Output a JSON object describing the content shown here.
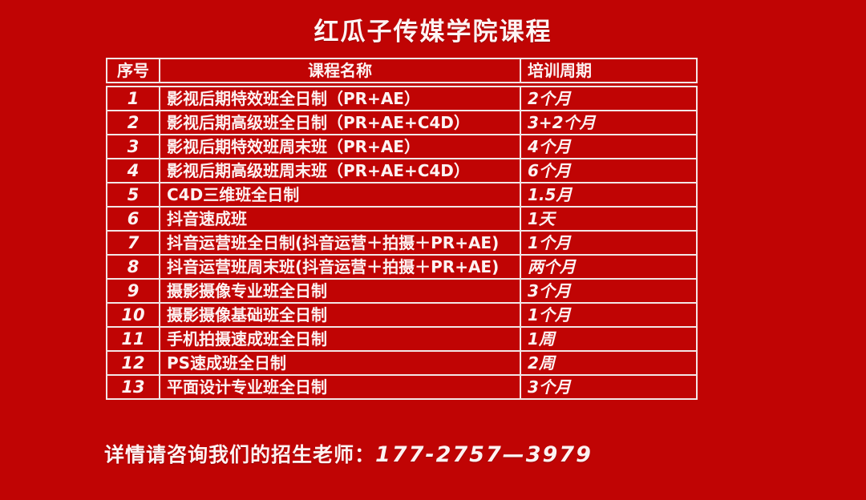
{
  "title": "红瓜子传媒学院课程",
  "colors": {
    "background": "#c00404",
    "grid_border": "#f3e6e6",
    "text": "#fdf2f2"
  },
  "table": {
    "headers": [
      "序号",
      "课程名称",
      "培训周期"
    ],
    "rows": [
      [
        "1",
        "影视后期特效班全日制（PR+AE）",
        "2个月"
      ],
      [
        "2",
        "影视后期高级班全日制（PR+AE+C4D）",
        "3+2个月"
      ],
      [
        "3",
        "影视后期特效班周末班（PR+AE）",
        "4个月"
      ],
      [
        "4",
        "影视后期高级班周末班（PR+AE+C4D）",
        "6个月"
      ],
      [
        "5",
        "C4D三维班全日制",
        "1.5月"
      ],
      [
        "6",
        "抖音速成班",
        "1天"
      ],
      [
        "7",
        "抖音运营班全日制(抖音运营＋拍摄＋PR+AE)",
        "1个月"
      ],
      [
        "8",
        "抖音运营班周末班(抖音运营＋拍摄＋PR+AE)",
        "两个月"
      ],
      [
        "9",
        "摄影摄像专业班全日制",
        "3个月"
      ],
      [
        "10",
        "摄影摄像基础班全日制",
        "1个月"
      ],
      [
        "11",
        "手机拍摄速成班全日制",
        "1周"
      ],
      [
        "12",
        "PS速成班全日制",
        "2周"
      ],
      [
        "13",
        "平面设计专业班全日制",
        "3个月"
      ]
    ]
  },
  "footer": {
    "contact_text": "详情请咨询我们的招生老师：",
    "phone": "177-2757—3979"
  }
}
